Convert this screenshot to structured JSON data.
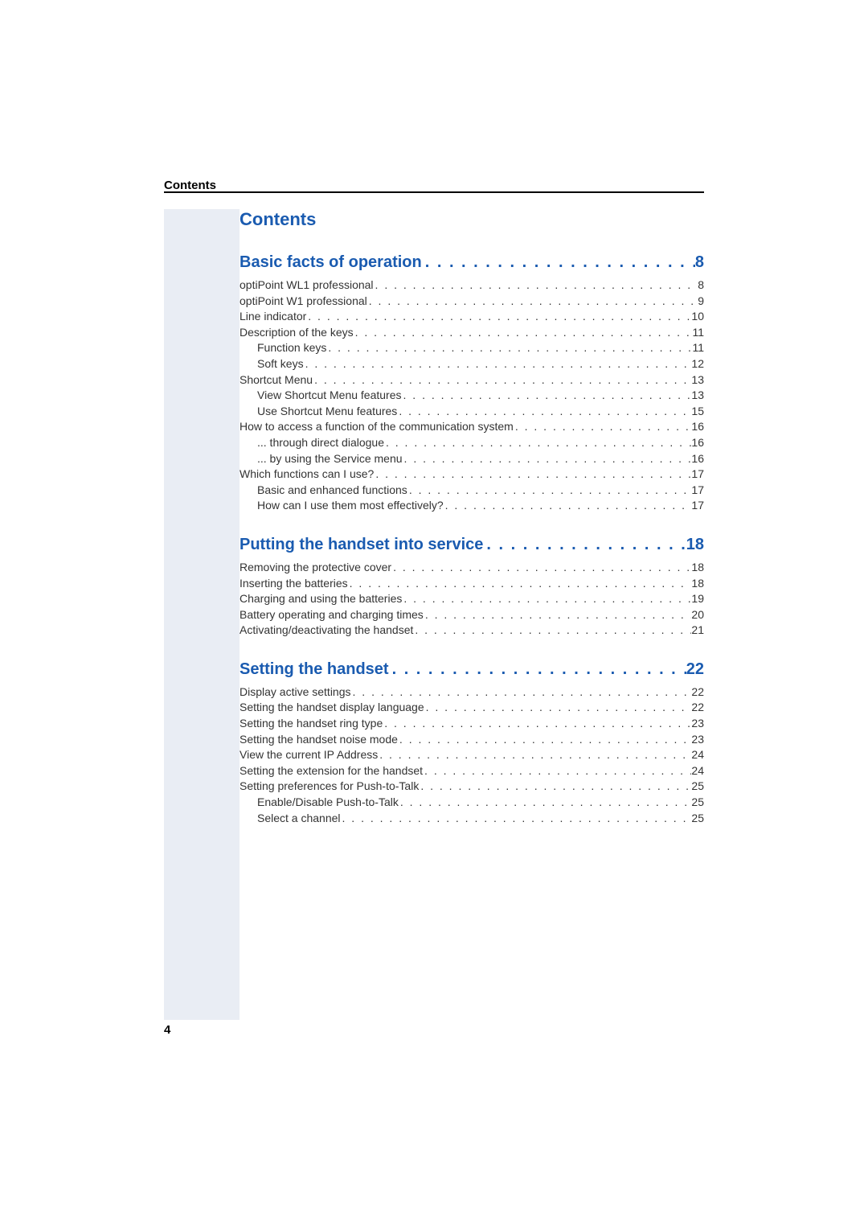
{
  "header_label": "Contents",
  "toc_title": "Contents",
  "page_number": "4",
  "colors": {
    "link_blue": "#1a5bb0",
    "left_band": "#e9edf4",
    "text": "#333333",
    "rule": "#000000",
    "background": "#ffffff"
  },
  "typography": {
    "header_label_size": 15,
    "toc_title_size": 22,
    "section_title_size": 20,
    "entry_size": 14,
    "page_number_size": 15
  },
  "sections": [
    {
      "title": "Basic facts of operation",
      "page": "8",
      "entries": [
        {
          "text": "optiPoint WL1 professional",
          "page": "8",
          "indent": 0
        },
        {
          "text": "optiPoint W1 professional",
          "page": "9",
          "indent": 0
        },
        {
          "text": "Line indicator",
          "page": "10",
          "indent": 0
        },
        {
          "text": "Description of the keys",
          "page": "11",
          "indent": 0
        },
        {
          "text": "Function keys",
          "page": "11",
          "indent": 1
        },
        {
          "text": "Soft keys",
          "page": "12",
          "indent": 1
        },
        {
          "text": "Shortcut Menu",
          "page": "13",
          "indent": 0
        },
        {
          "text": "View Shortcut Menu features",
          "page": "13",
          "indent": 1
        },
        {
          "text": "Use Shortcut Menu features",
          "page": "15",
          "indent": 1
        },
        {
          "text": "How to access a function of the communication system",
          "page": "16",
          "indent": 0
        },
        {
          "text": "... through direct dialogue",
          "page": "16",
          "indent": 1
        },
        {
          "text": "... by using the Service menu",
          "page": "16",
          "indent": 1
        },
        {
          "text": "Which functions can I use?",
          "page": "17",
          "indent": 0
        },
        {
          "text": "Basic and enhanced functions",
          "page": "17",
          "indent": 1
        },
        {
          "text": "How can I use them most effectively?",
          "page": "17",
          "indent": 1
        }
      ]
    },
    {
      "title": "Putting the handset into service",
      "page": "18",
      "entries": [
        {
          "text": "Removing the protective cover",
          "page": "18",
          "indent": 0
        },
        {
          "text": "Inserting the batteries",
          "page": "18",
          "indent": 0
        },
        {
          "text": "Charging and using the batteries",
          "page": "19",
          "indent": 0
        },
        {
          "text": "Battery operating and charging times",
          "page": "20",
          "indent": 0
        },
        {
          "text": "Activating/deactivating the handset",
          "page": "21",
          "indent": 0
        }
      ]
    },
    {
      "title": "Setting the handset",
      "page": "22",
      "entries": [
        {
          "text": "Display active settings",
          "page": "22",
          "indent": 0
        },
        {
          "text": "Setting the handset display language",
          "page": "22",
          "indent": 0
        },
        {
          "text": "Setting the handset ring type",
          "page": "23",
          "indent": 0
        },
        {
          "text": "Setting the handset noise mode",
          "page": "23",
          "indent": 0
        },
        {
          "text": "View the current IP Address",
          "page": "24",
          "indent": 0
        },
        {
          "text": "Setting the extension for the handset",
          "page": "24",
          "indent": 0
        },
        {
          "text": "Setting preferences for Push-to-Talk",
          "page": "25",
          "indent": 0
        },
        {
          "text": "Enable/Disable Push-to-Talk",
          "page": "25",
          "indent": 1
        },
        {
          "text": "Select a channel",
          "page": "25",
          "indent": 1
        }
      ]
    }
  ]
}
